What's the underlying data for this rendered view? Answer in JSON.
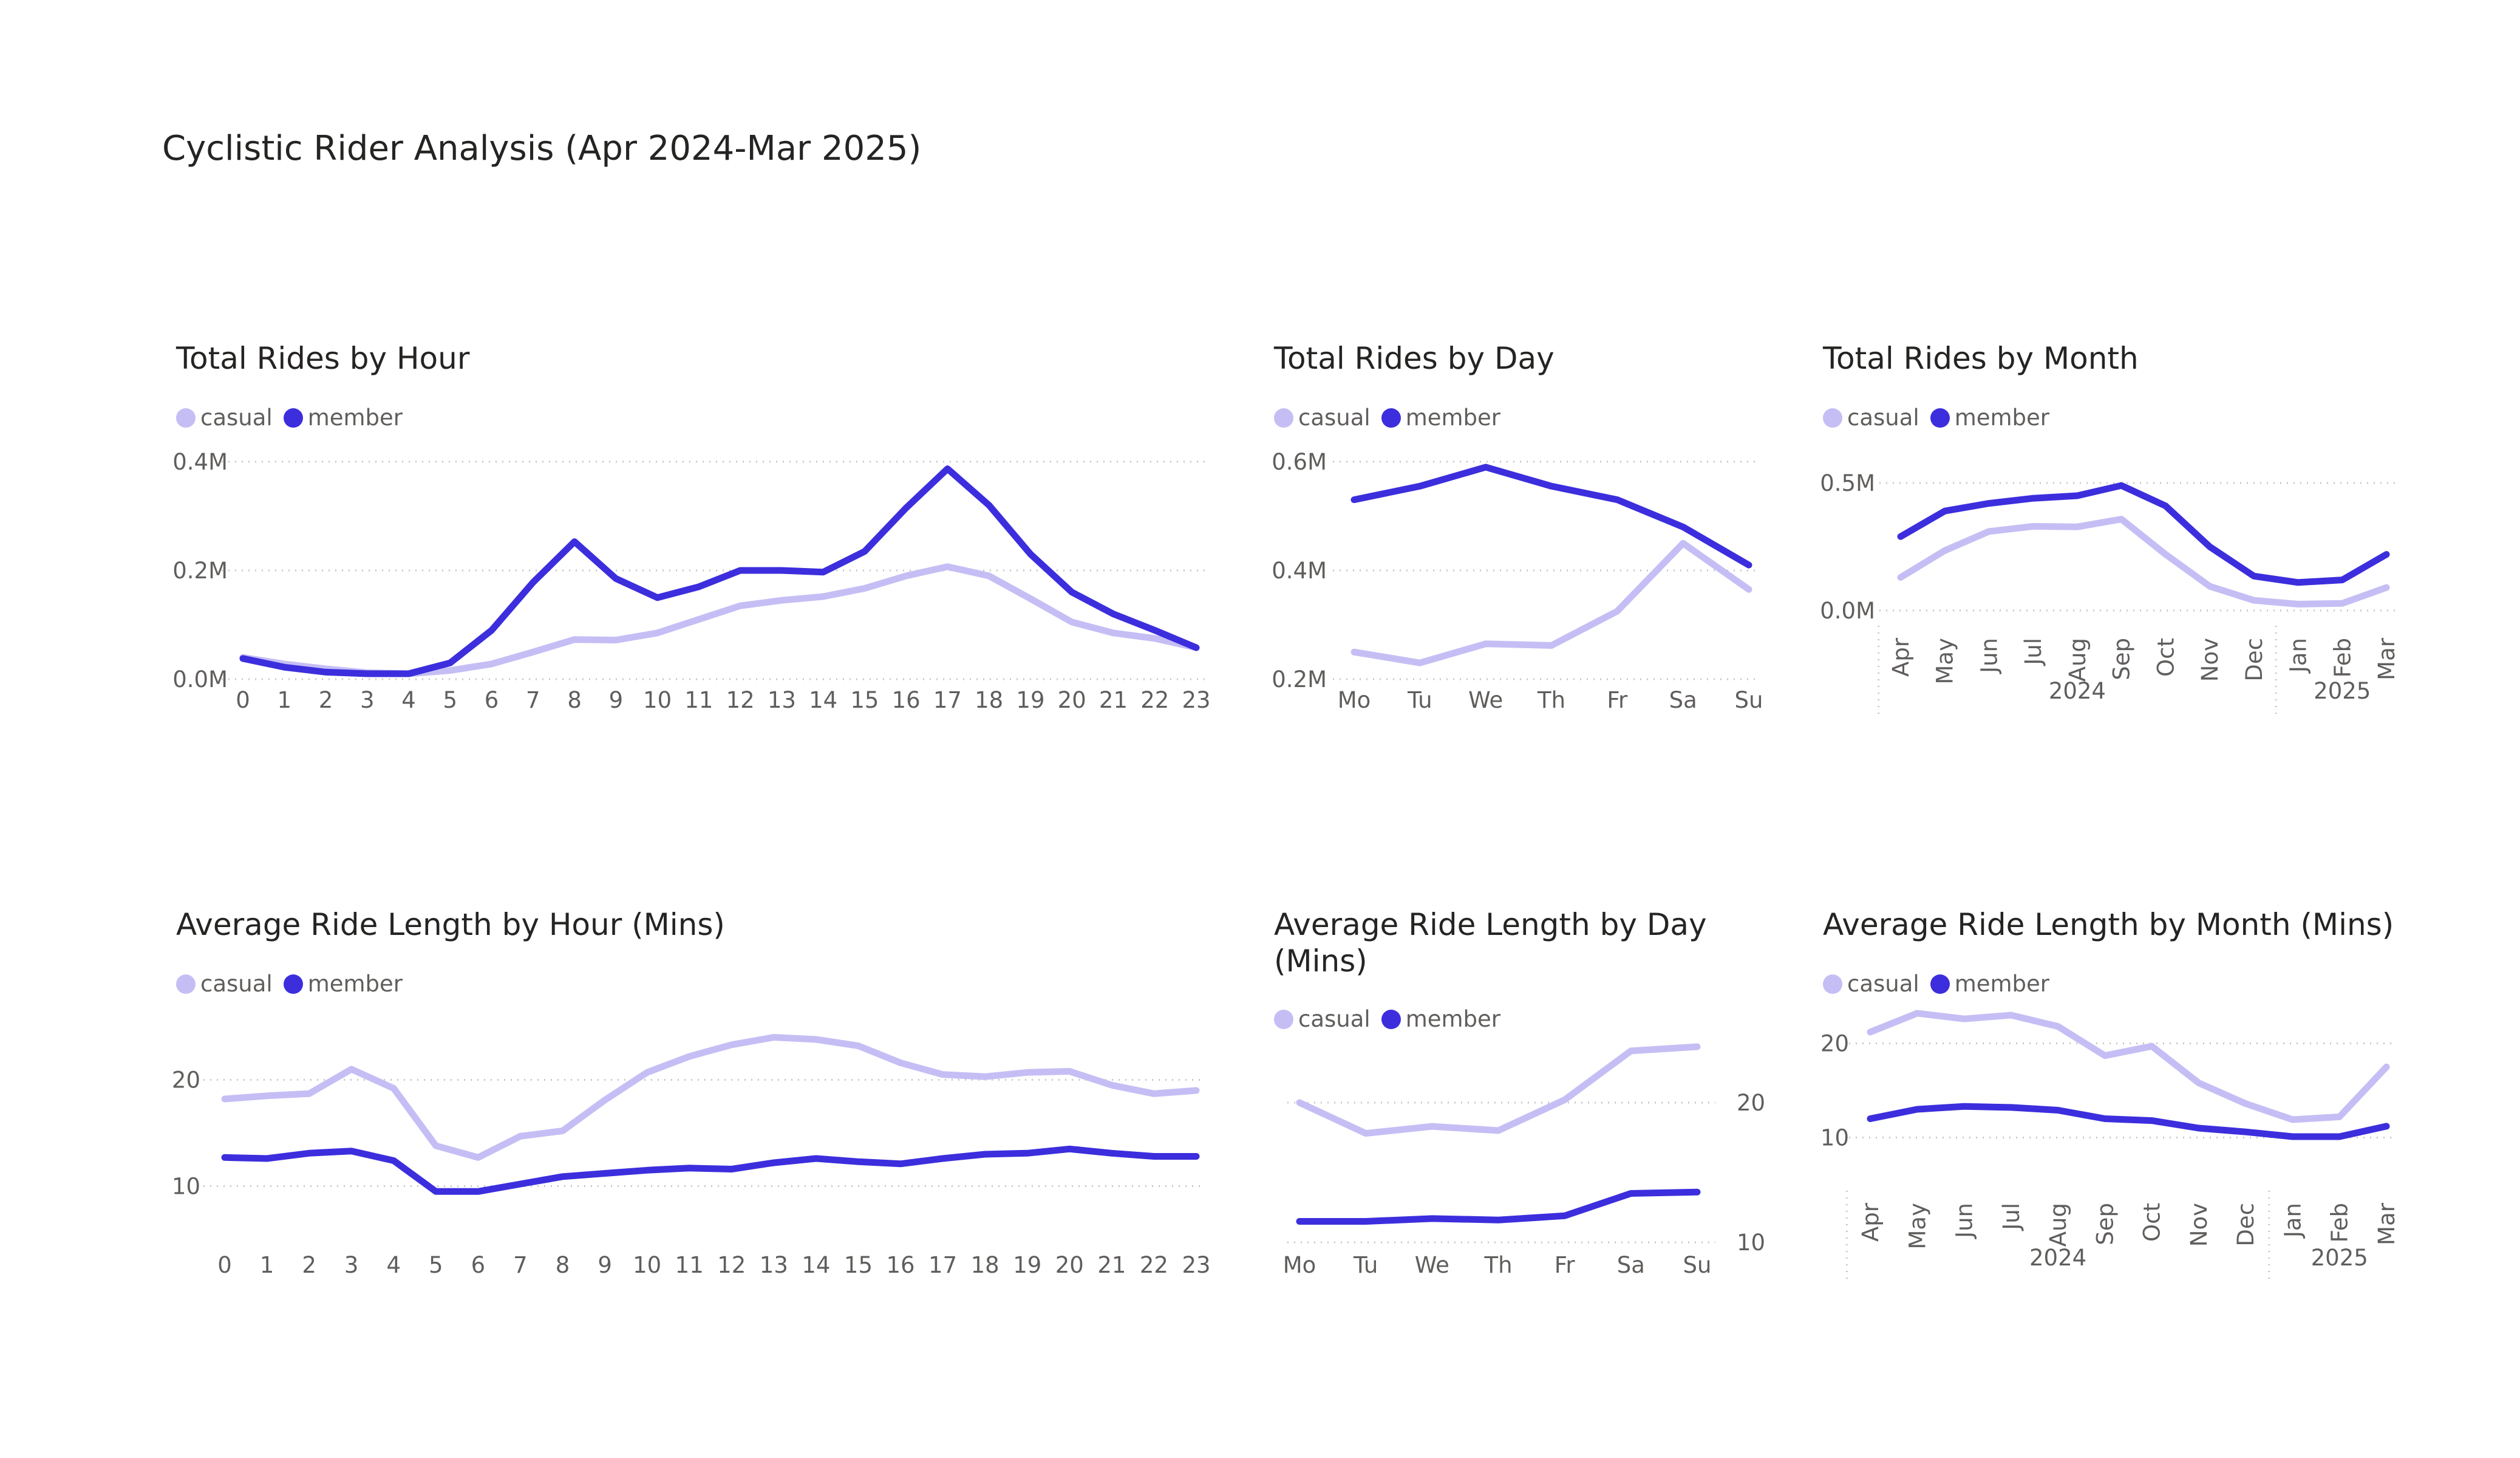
{
  "page": {
    "title": "Cyclistic Rider Analysis (Apr 2024-Mar 2025)"
  },
  "colors": {
    "casual": "#C5BEF5",
    "member": "#3C2EDD"
  },
  "chart_data": [
    {
      "id": "rides-hour",
      "type": "line",
      "title": "Total Rides by Hour",
      "legend": [
        "casual",
        "member"
      ],
      "categories": [
        "0",
        "1",
        "2",
        "3",
        "4",
        "5",
        "6",
        "7",
        "8",
        "9",
        "10",
        "11",
        "12",
        "13",
        "14",
        "15",
        "16",
        "17",
        "18",
        "19",
        "20",
        "21",
        "22",
        "23"
      ],
      "series": [
        {
          "name": "casual",
          "values": [
            0.04,
            0.028,
            0.019,
            0.012,
            0.01,
            0.016,
            0.028,
            0.05,
            0.073,
            0.072,
            0.085,
            0.11,
            0.135,
            0.145,
            0.152,
            0.167,
            0.19,
            0.207,
            0.19,
            0.148,
            0.105,
            0.085,
            0.075,
            0.058
          ]
        },
        {
          "name": "member",
          "values": [
            0.038,
            0.022,
            0.013,
            0.01,
            0.01,
            0.03,
            0.09,
            0.178,
            0.253,
            0.185,
            0.15,
            0.17,
            0.2,
            0.2,
            0.197,
            0.235,
            0.315,
            0.387,
            0.32,
            0.23,
            0.16,
            0.12,
            0.09,
            0.058
          ]
        }
      ],
      "ylim": [
        0,
        0.4
      ],
      "yticks": [
        0,
        0.2,
        0.4
      ],
      "ytick_labels": [
        "0.0M",
        "0.2M",
        "0.4M"
      ]
    },
    {
      "id": "rides-day",
      "type": "line",
      "title": "Total Rides by Day",
      "legend": [
        "casual",
        "member"
      ],
      "categories": [
        "Mo",
        "Tu",
        "We",
        "Th",
        "Fr",
        "Sa",
        "Su"
      ],
      "series": [
        {
          "name": "casual",
          "values": [
            0.25,
            0.23,
            0.265,
            0.262,
            0.325,
            0.45,
            0.365
          ]
        },
        {
          "name": "member",
          "values": [
            0.53,
            0.555,
            0.59,
            0.555,
            0.53,
            0.48,
            0.41
          ]
        }
      ],
      "ylim": [
        0.2,
        0.6
      ],
      "yticks": [
        0.2,
        0.4,
        0.6
      ],
      "ytick_labels": [
        "0.2M",
        "0.4M",
        "0.6M"
      ]
    },
    {
      "id": "rides-month",
      "type": "line",
      "title": "Total Rides by Month",
      "legend": [
        "casual",
        "member"
      ],
      "categories": [
        "Apr",
        "May",
        "Jun",
        "Jul",
        "Aug",
        "Sep",
        "Oct",
        "Nov",
        "Dec",
        "Jan",
        "Feb",
        "Mar"
      ],
      "year_groups": [
        {
          "label": "2024",
          "count": 9
        },
        {
          "label": "2025",
          "count": 3
        }
      ],
      "series": [
        {
          "name": "casual",
          "values": [
            0.13,
            0.235,
            0.31,
            0.33,
            0.328,
            0.358,
            0.22,
            0.095,
            0.04,
            0.025,
            0.028,
            0.09
          ]
        },
        {
          "name": "member",
          "values": [
            0.29,
            0.39,
            0.42,
            0.44,
            0.45,
            0.49,
            0.41,
            0.25,
            0.135,
            0.11,
            0.12,
            0.22
          ]
        }
      ],
      "ylim": [
        0,
        0.5
      ],
      "yticks": [
        0,
        0.5
      ],
      "ytick_labels": [
        "0.0M",
        "0.5M"
      ]
    },
    {
      "id": "length-hour",
      "type": "line",
      "title": "Average Ride Length by Hour (Mins)",
      "legend": [
        "casual",
        "member"
      ],
      "categories": [
        "0",
        "1",
        "2",
        "3",
        "4",
        "5",
        "6",
        "7",
        "8",
        "9",
        "10",
        "11",
        "12",
        "13",
        "14",
        "15",
        "16",
        "17",
        "18",
        "19",
        "20",
        "21",
        "22",
        "23"
      ],
      "series": [
        {
          "name": "casual",
          "values": [
            18.2,
            18.5,
            18.7,
            21,
            19.2,
            13.8,
            12.7,
            14.7,
            15.2,
            18.1,
            20.7,
            22.2,
            23.3,
            24,
            23.8,
            23.2,
            21.6,
            20.5,
            20.3,
            20.7,
            20.8,
            19.5,
            18.7,
            19
          ]
        },
        {
          "name": "member",
          "values": [
            12.7,
            12.6,
            13.1,
            13.3,
            12.4,
            9.5,
            9.5,
            10.2,
            10.9,
            11.2,
            11.5,
            11.7,
            11.6,
            12.2,
            12.6,
            12.3,
            12.1,
            12.6,
            13,
            13.1,
            13.5,
            13.1,
            12.8,
            12.8
          ]
        }
      ],
      "ylim": [
        5,
        25
      ],
      "yticks": [
        10,
        20
      ],
      "ytick_labels": [
        "10",
        "20"
      ]
    },
    {
      "id": "length-day",
      "type": "line",
      "title": "Average Ride Length by Day (Mins)",
      "legend": [
        "casual",
        "member"
      ],
      "categories": [
        "Mo",
        "Tu",
        "We",
        "Th",
        "Fr",
        "Sa",
        "Su"
      ],
      "series": [
        {
          "name": "casual",
          "values": [
            20,
            17.8,
            18.3,
            18,
            20.2,
            23.7,
            24
          ]
        },
        {
          "name": "member",
          "values": [
            11.5,
            11.5,
            11.7,
            11.6,
            11.9,
            13.5,
            13.6
          ]
        }
      ],
      "ylim": [
        10,
        25
      ],
      "yticks": [
        10,
        20
      ],
      "ytick_labels": [
        "10",
        "20"
      ]
    },
    {
      "id": "length-month",
      "type": "line",
      "title": "Average Ride Length by Month (Mins)",
      "legend": [
        "casual",
        "member"
      ],
      "categories": [
        "Apr",
        "May",
        "Jun",
        "Jul",
        "Aug",
        "Sep",
        "Oct",
        "Nov",
        "Dec",
        "Jan",
        "Feb",
        "Mar"
      ],
      "year_groups": [
        {
          "label": "2024",
          "count": 9
        },
        {
          "label": "2025",
          "count": 3
        }
      ],
      "series": [
        {
          "name": "casual",
          "values": [
            21.2,
            23.2,
            22.6,
            23,
            21.8,
            18.7,
            19.7,
            15.8,
            13.6,
            11.9,
            12.2,
            17.5
          ]
        },
        {
          "name": "member",
          "values": [
            12,
            13,
            13.3,
            13.2,
            12.9,
            12,
            11.8,
            11,
            10.6,
            10.1,
            10.1,
            11.2
          ]
        }
      ],
      "ylim": [
        5,
        25
      ],
      "yticks": [
        10,
        20
      ],
      "ytick_labels": [
        "10",
        "20"
      ]
    }
  ]
}
